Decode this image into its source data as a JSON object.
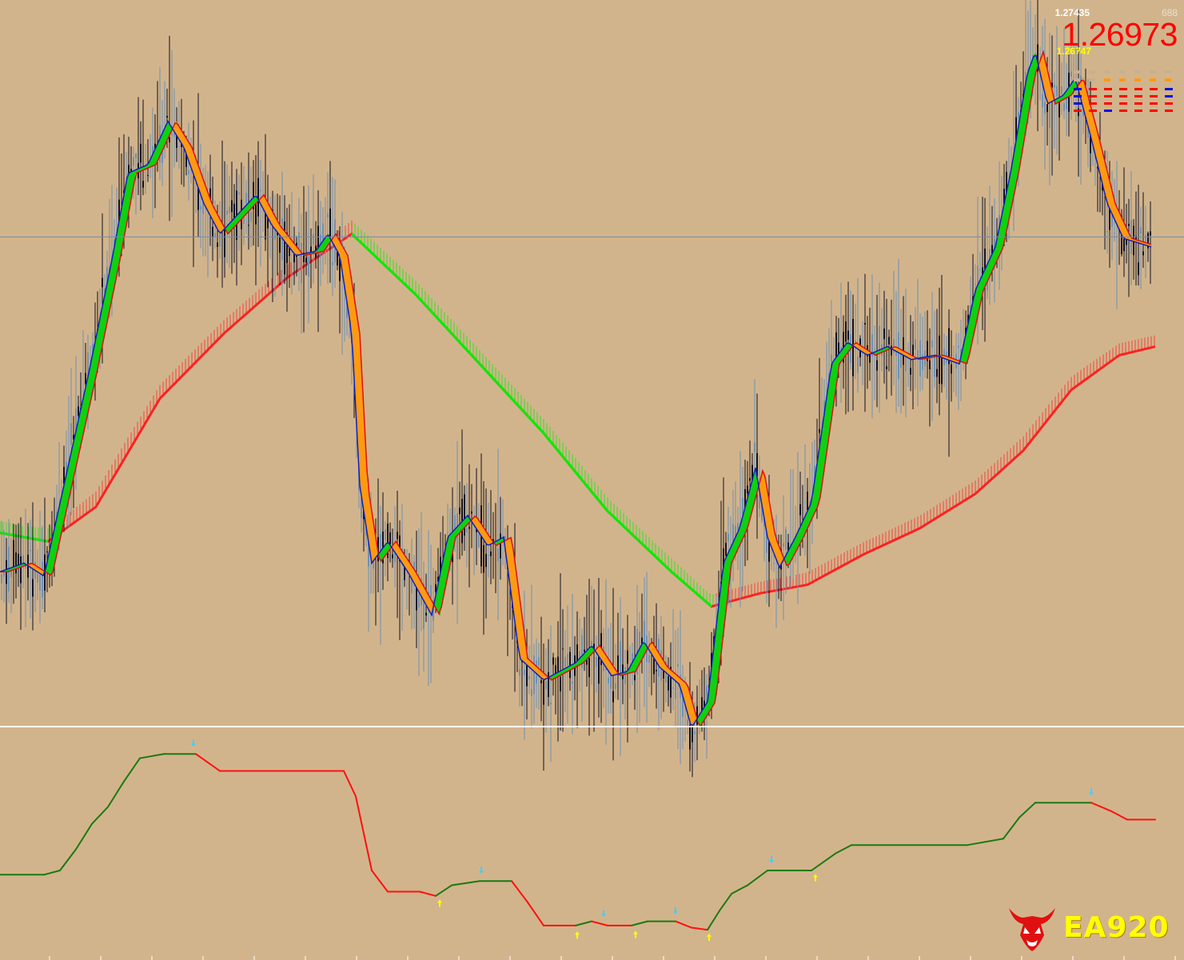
{
  "price_panel": {
    "high": "1.27435",
    "spread": "688",
    "current": "1.26973",
    "low": "1.26747"
  },
  "logo": {
    "text": "EA920"
  },
  "colors": {
    "background": "#d2b48c",
    "up_band": "#00ee00",
    "down_band": "#ff2020",
    "price_line": "#7090b0",
    "bid_line": "#7a8aa0",
    "osc_up": "#1a7a10",
    "osc_down": "#ff1010"
  },
  "chart_data": [
    {
      "type": "candlestick",
      "title": "",
      "bid_level": 1.26973,
      "ylim": [
        1.2585,
        1.2752
      ],
      "ma_price_path": [
        [
          0,
          1.262
        ],
        [
          30,
          1.2622
        ],
        [
          55,
          1.2619
        ],
        [
          80,
          1.264
        ],
        [
          110,
          1.2665
        ],
        [
          140,
          1.2692
        ],
        [
          160,
          1.2712
        ],
        [
          185,
          1.2714
        ],
        [
          210,
          1.2724
        ],
        [
          230,
          1.2718
        ],
        [
          255,
          1.2705
        ],
        [
          275,
          1.2698
        ],
        [
          300,
          1.2703
        ],
        [
          320,
          1.2707
        ],
        [
          340,
          1.27
        ],
        [
          370,
          1.2693
        ],
        [
          395,
          1.2694
        ],
        [
          410,
          1.2698
        ],
        [
          425,
          1.2693
        ],
        [
          440,
          1.2675
        ],
        [
          450,
          1.264
        ],
        [
          465,
          1.2622
        ],
        [
          485,
          1.2627
        ],
        [
          510,
          1.262
        ],
        [
          540,
          1.261
        ],
        [
          560,
          1.2628
        ],
        [
          585,
          1.2633
        ],
        [
          610,
          1.2626
        ],
        [
          630,
          1.2628
        ],
        [
          650,
          1.26
        ],
        [
          680,
          1.2595
        ],
        [
          720,
          1.2599
        ],
        [
          740,
          1.2603
        ],
        [
          765,
          1.2596
        ],
        [
          785,
          1.2597
        ],
        [
          805,
          1.2604
        ],
        [
          825,
          1.2598
        ],
        [
          850,
          1.2594
        ],
        [
          865,
          1.2584
        ],
        [
          885,
          1.259
        ],
        [
          905,
          1.2622
        ],
        [
          925,
          1.263
        ],
        [
          945,
          1.2644
        ],
        [
          960,
          1.2628
        ],
        [
          975,
          1.2621
        ],
        [
          995,
          1.2628
        ],
        [
          1015,
          1.2636
        ],
        [
          1040,
          1.2668
        ],
        [
          1060,
          1.2673
        ],
        [
          1085,
          1.267
        ],
        [
          1110,
          1.2672
        ],
        [
          1140,
          1.2669
        ],
        [
          1170,
          1.267
        ],
        [
          1200,
          1.2668
        ],
        [
          1220,
          1.2685
        ],
        [
          1245,
          1.2695
        ],
        [
          1265,
          1.2713
        ],
        [
          1285,
          1.2735
        ],
        [
          1295,
          1.274
        ],
        [
          1310,
          1.2728
        ],
        [
          1330,
          1.273
        ],
        [
          1345,
          1.2734
        ],
        [
          1365,
          1.272
        ],
        [
          1385,
          1.2705
        ],
        [
          1405,
          1.2697
        ],
        [
          1440,
          1.2695
        ]
      ],
      "slow_ma_path": [
        [
          0,
          1.2629
        ],
        [
          60,
          1.2627
        ],
        [
          120,
          1.2635
        ],
        [
          200,
          1.266
        ],
        [
          280,
          1.2675
        ],
        [
          360,
          1.2688
        ],
        [
          440,
          1.2698
        ],
        [
          520,
          1.2684
        ],
        [
          600,
          1.2668
        ],
        [
          680,
          1.2652
        ],
        [
          760,
          1.2634
        ],
        [
          840,
          1.262
        ],
        [
          890,
          1.2612
        ],
        [
          950,
          1.2615
        ],
        [
          1010,
          1.2617
        ],
        [
          1080,
          1.2624
        ],
        [
          1150,
          1.263
        ],
        [
          1220,
          1.2638
        ],
        [
          1280,
          1.2648
        ],
        [
          1340,
          1.2662
        ],
        [
          1400,
          1.267
        ],
        [
          1445,
          1.2672
        ]
      ]
    },
    {
      "type": "line",
      "title": "",
      "ylim": [
        0,
        100
      ],
      "path": [
        [
          0,
          38
        ],
        [
          55,
          38
        ],
        [
          75,
          40
        ],
        [
          95,
          50
        ],
        [
          115,
          62
        ],
        [
          135,
          70
        ],
        [
          155,
          82
        ],
        [
          175,
          93
        ],
        [
          205,
          95
        ],
        [
          245,
          95
        ],
        [
          275,
          87
        ],
        [
          355,
          87
        ],
        [
          430,
          87
        ],
        [
          445,
          75
        ],
        [
          465,
          40
        ],
        [
          485,
          30
        ],
        [
          525,
          30
        ],
        [
          545,
          28
        ],
        [
          565,
          33
        ],
        [
          600,
          35
        ],
        [
          640,
          35
        ],
        [
          660,
          25
        ],
        [
          680,
          14
        ],
        [
          720,
          14
        ],
        [
          740,
          16
        ],
        [
          760,
          14
        ],
        [
          790,
          14
        ],
        [
          810,
          16
        ],
        [
          845,
          16
        ],
        [
          865,
          13
        ],
        [
          885,
          12
        ],
        [
          900,
          21
        ],
        [
          915,
          29
        ],
        [
          935,
          33
        ],
        [
          960,
          40
        ],
        [
          1015,
          40
        ],
        [
          1045,
          48
        ],
        [
          1065,
          52
        ],
        [
          1210,
          52
        ],
        [
          1255,
          55
        ],
        [
          1275,
          65
        ],
        [
          1295,
          72
        ],
        [
          1365,
          72
        ],
        [
          1390,
          68
        ],
        [
          1410,
          64
        ],
        [
          1445,
          64
        ]
      ],
      "arrows_up": [
        550,
        722,
        795,
        887,
        1020
      ],
      "arrows_down": [
        242,
        602,
        755,
        845,
        965,
        1365
      ]
    }
  ]
}
